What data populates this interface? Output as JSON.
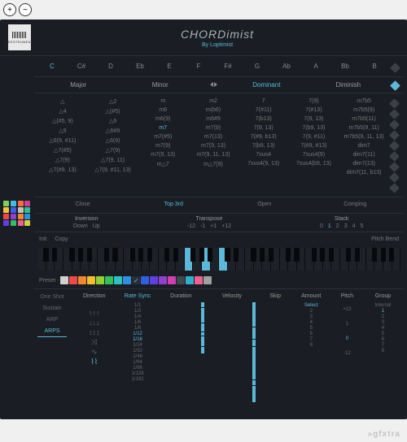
{
  "zoom": {
    "in": "+",
    "out": "−"
  },
  "brand": {
    "logo_text": "LEESTRUMENT",
    "title": "CHORDimist",
    "subtitle": "By Loptimist"
  },
  "roots": [
    "C",
    "C#",
    "D",
    "Eb",
    "E",
    "F",
    "F#",
    "G",
    "Ab",
    "A",
    "Bb",
    "B"
  ],
  "root_selected": 0,
  "types": {
    "major": "Major",
    "minor": "Minor",
    "dominant": "Dominant",
    "diminish": "Diminish"
  },
  "chords": {
    "major1": [
      "△",
      "△4",
      "△(#5, 9)",
      "△9",
      "△6(9, #11)",
      "△7(#5)",
      "△7(9)",
      "△7(#9, 13)"
    ],
    "major2": [
      "△2",
      "△(#5)",
      "△6",
      "△6#9",
      "△6(9)",
      "△7(9)",
      "△7(9, 11)",
      "△7(9, #11, 13)"
    ],
    "minor1": [
      "m",
      "m6",
      "m6(9)",
      "m7",
      "m7(#5)",
      "m7(9)",
      "m7(9, 13)",
      "m△7"
    ],
    "minor2": [
      "m2",
      "m(b6)",
      "m6#9",
      "m7(9)",
      "m7(13)",
      "m7(9, 13)",
      "m7(9, 11, 13)",
      "m△7(9)"
    ],
    "dom1": [
      "7",
      "7(#11)",
      "7(b13)",
      "7(9, 13)",
      "7(#9, b13)",
      "7(b9, 13)",
      "7sus4",
      "7sus4(9, 13)"
    ],
    "dom2": [
      "7(9)",
      "7(#13)",
      "7(9, 13)",
      "7(b9, 13)",
      "7(9, #11)",
      "7(#9, #13)",
      "7sus4(9)",
      "7sus4(b9, 13)"
    ],
    "dim": [
      "m7b5",
      "m7b5(9)",
      "m7b5(11)",
      "m7b5(9, 11)",
      "m7b5(9, 11, 13)",
      "dim7",
      "dim7(11)",
      "dim7(13)",
      "dim7(11, b13)"
    ]
  },
  "minor_hl_idx": 3,
  "voicing": {
    "close": "Close",
    "top3rd": "Top 3rd",
    "open": "Open",
    "comping": "Comping",
    "selected": "top3rd"
  },
  "controls": {
    "inversion": {
      "label": "Inversion",
      "down": "Down",
      "up": "Up"
    },
    "transpose": {
      "label": "Transpose",
      "vals": [
        "-12",
        "-1",
        "+1",
        "+12"
      ]
    },
    "stack": {
      "label": "Stack",
      "vals": [
        "0",
        "1",
        "2",
        "3",
        "4",
        "5"
      ],
      "selected": 1
    }
  },
  "init_row": {
    "init": "Init",
    "copy": "Copy",
    "pitchbend": "Pitch Bend"
  },
  "piano": {
    "pressed_white": [
      17,
      19,
      21
    ],
    "pressed_black": []
  },
  "preset": {
    "label": "Preset",
    "colors": [
      "#d0d0d0",
      "#f04848",
      "#f08830",
      "#f0c030",
      "#90d030",
      "#30c060",
      "#30c0c0",
      "#3090e0",
      "#3060e0",
      "#6040e0",
      "#9040d0",
      "#d040b0",
      "#404850",
      "#30b0d0",
      "#f06090",
      "#a0a0a0"
    ]
  },
  "pads": [
    "#80d060",
    "#40c0e0",
    "#f07040",
    "#d04090",
    "#f0c040",
    "#4060e0",
    "#c0c0c0",
    "#30c090",
    "#f04848",
    "#9040d0",
    "#f08830",
    "#3090e0",
    "#6040e0",
    "#30c060",
    "#f06090",
    "#d0d040"
  ],
  "arp": {
    "modes": [
      "One Shot",
      "Sustain",
      "ARP",
      "ARPS"
    ],
    "mode_selected": 3,
    "headers": {
      "direction": "Direction",
      "rate": "Rate Sync",
      "duration": "Duration",
      "velocity": "Velocity",
      "skip": "Skip",
      "amount": "Amount",
      "pitch": "Pitch",
      "group": "Group"
    },
    "rates": [
      "1/1",
      "1/2",
      "1/4",
      "1/6",
      "1/8",
      "1/12",
      "1/16",
      "1/24",
      "1/32",
      "1/48",
      "1/64",
      "1/96",
      "1/128",
      "1/192"
    ],
    "rate_hl": [
      5,
      6
    ],
    "duration_bars": [
      6,
      18,
      10,
      4,
      12,
      8
    ],
    "velocity_bars": [
      30,
      14,
      8,
      40,
      6,
      20
    ],
    "amount": {
      "select": "Select",
      "vals": [
        "2",
        "3",
        "4",
        "5",
        "6",
        "7",
        "8"
      ]
    },
    "pitch": {
      "vals": [
        "+12",
        "1",
        "0",
        "-12"
      ],
      "hl": 2
    },
    "group": {
      "internal": "Internal",
      "vals": [
        "1",
        "2",
        "3",
        "4",
        "5",
        "6",
        "7",
        "8"
      ],
      "hl": 0
    }
  },
  "watermark": "»gfxtra"
}
